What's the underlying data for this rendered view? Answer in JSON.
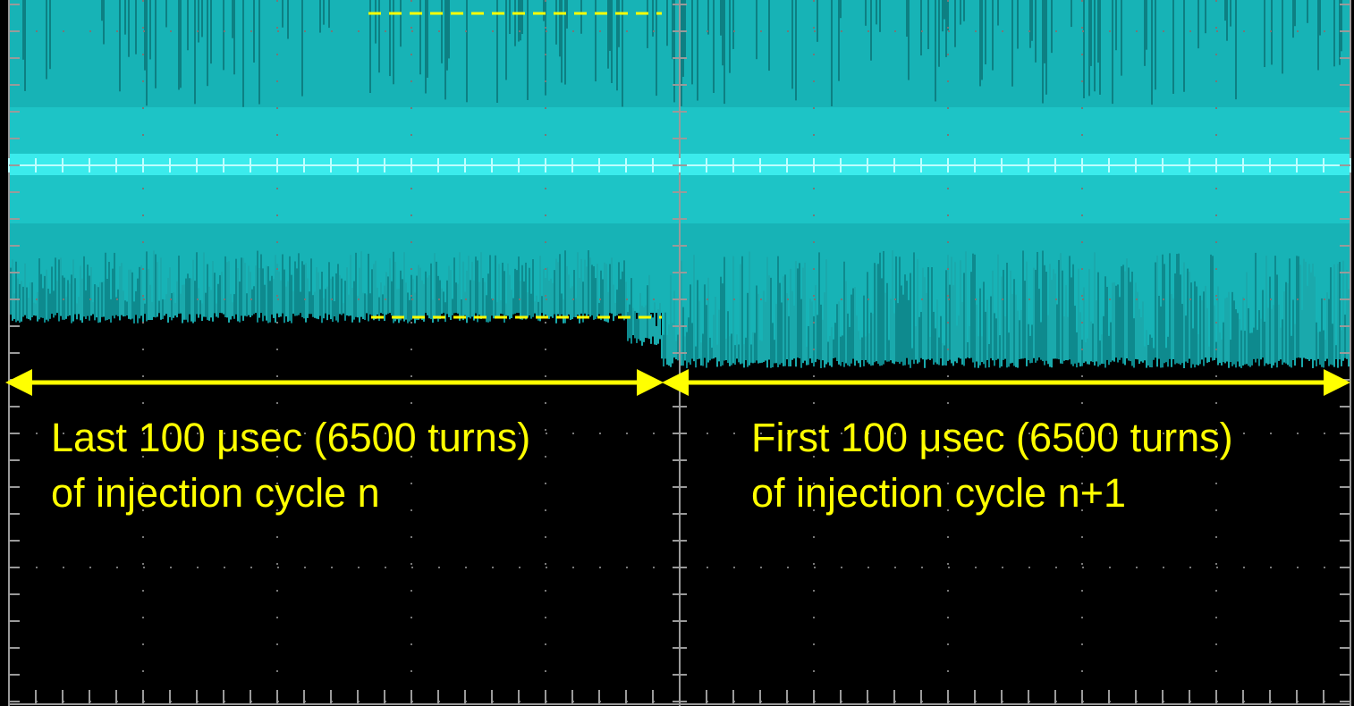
{
  "annotations": {
    "left": [
      "Last 100 μsec (6500 turns)",
      "of injection cycle n"
    ],
    "right": [
      "First 100 μsec (6500 turns)",
      "of injection cycle n+1"
    ]
  }
}
